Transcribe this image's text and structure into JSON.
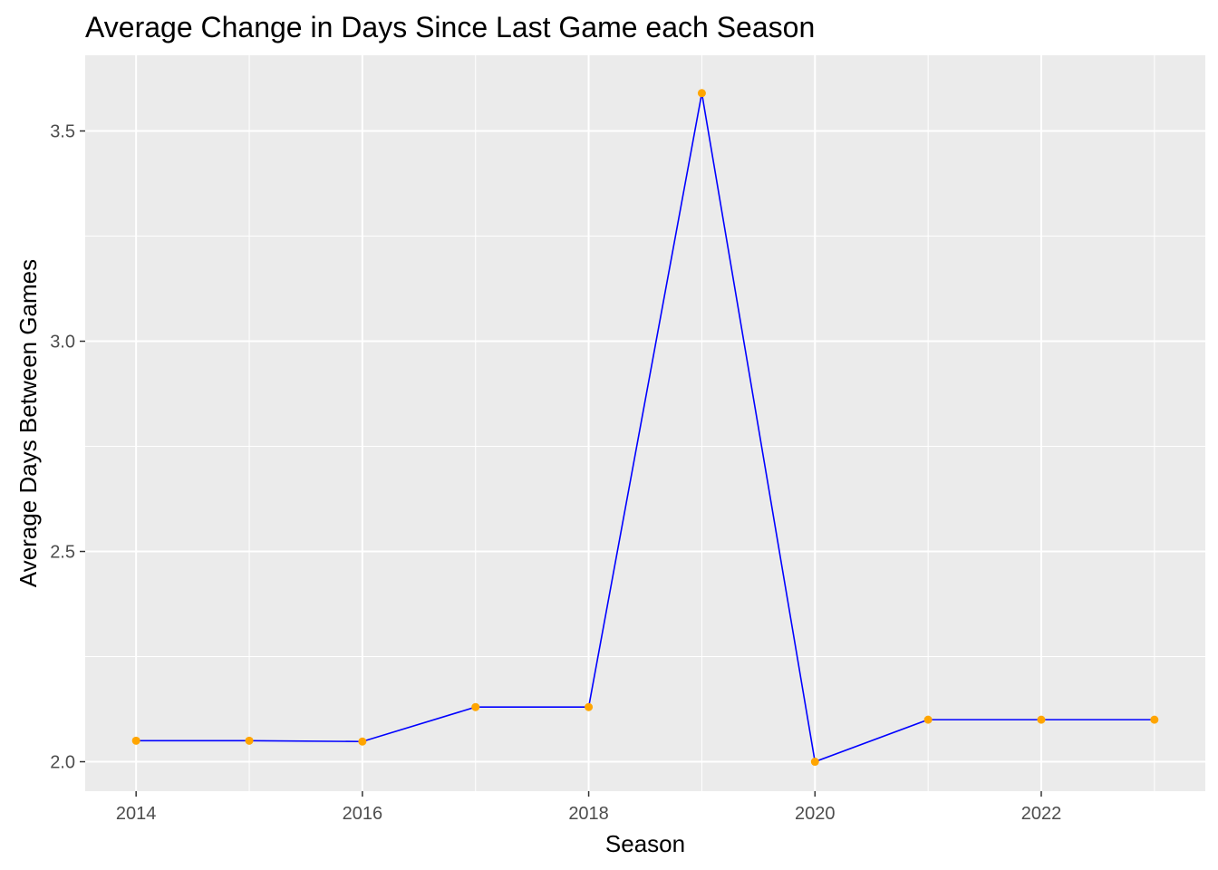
{
  "chart_data": {
    "type": "line",
    "title": "Average Change in Days Since Last Game each Season",
    "xlabel": "Season",
    "ylabel": "Average Days Between Games",
    "x": [
      2014,
      2015,
      2016,
      2017,
      2018,
      2019,
      2020,
      2021,
      2022,
      2023
    ],
    "series": [
      {
        "values": [
          2.05,
          2.05,
          2.048,
          2.13,
          2.13,
          3.59,
          2.0,
          2.1,
          2.1,
          2.1
        ]
      }
    ],
    "xlim": [
      2013.55,
      2023.45
    ],
    "ylim": [
      1.93,
      3.68
    ],
    "x_ticks": [
      2014,
      2016,
      2018,
      2020,
      2022
    ],
    "x_tick_labels": [
      "2014",
      "2016",
      "2018",
      "2020",
      "2022"
    ],
    "y_ticks": [
      2.0,
      2.5,
      3.0,
      3.5
    ],
    "y_tick_labels": [
      "2.0",
      "2.5",
      "3.0",
      "3.5"
    ],
    "grid": true,
    "legend": "none",
    "colors": {
      "panel_background": "#ebebeb",
      "grid_line": "#ffffff",
      "line": "#0000ff",
      "point": "#ffa500"
    }
  }
}
